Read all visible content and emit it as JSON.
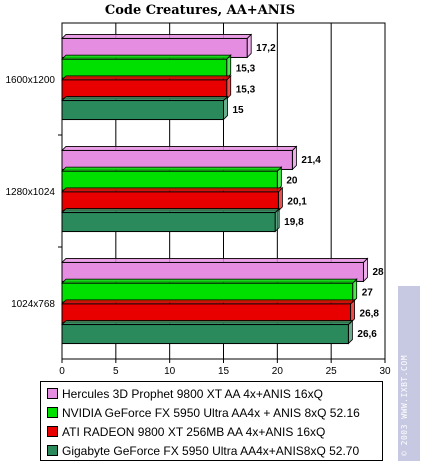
{
  "chart_data": {
    "type": "bar",
    "orientation": "horizontal",
    "title": "Code Creatures, AA+ANIS",
    "categories": [
      "1600x1200",
      "1280x1024",
      "1024x768"
    ],
    "xlim": [
      0,
      30
    ],
    "xticks": [
      0,
      5,
      10,
      15,
      20,
      25,
      30
    ],
    "grid": true,
    "legend_position": "bottom",
    "series": [
      {
        "name": "Hercules 3D Prophet 9800 XT AA 4x+ANIS 16xQ",
        "color": "#e58de0",
        "values": [
          17.2,
          21.4,
          28
        ],
        "labels": [
          "17,2",
          "21,4",
          "28"
        ]
      },
      {
        "name": "NVIDIA GeForce FX 5950 Ultra AA4x + ANIS 8xQ 52.16",
        "color": "#00e000",
        "values": [
          15.3,
          20,
          27
        ],
        "labels": [
          "15,3",
          "20",
          "27"
        ]
      },
      {
        "name": "ATI RADEON 9800 XT 256MB AA 4x+ANIS 16xQ",
        "color": "#e80000",
        "values": [
          15.3,
          20.1,
          26.8
        ],
        "labels": [
          "15,3",
          "20,1",
          "26,8"
        ]
      },
      {
        "name": "Gigabyte GeForce FX 5950 Ultra AA4x+ANIS8xQ 52.70",
        "color": "#2a8a5c",
        "values": [
          15,
          19.8,
          26.6
        ],
        "labels": [
          "15",
          "19,8",
          "26,6"
        ]
      }
    ]
  },
  "watermark": "© 2003 WWW.IXBT.COM"
}
